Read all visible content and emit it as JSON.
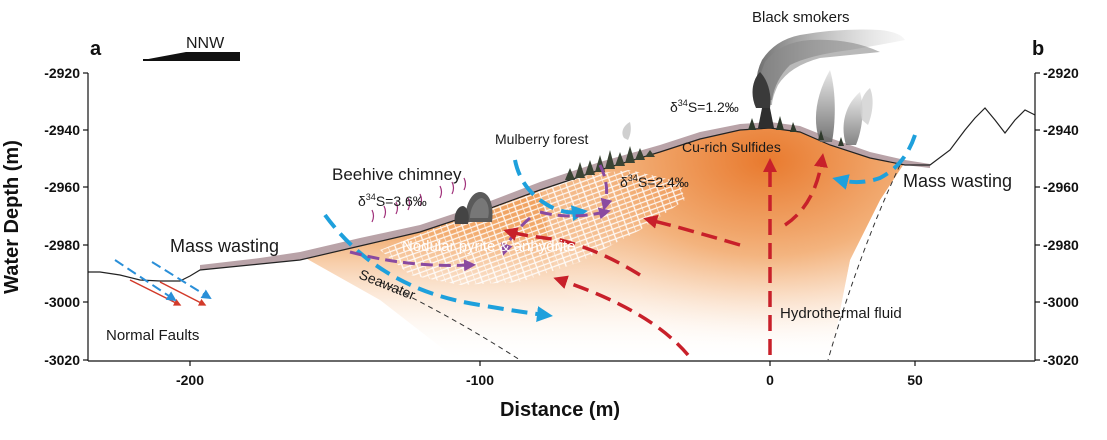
{
  "panel_labels": {
    "left": "a",
    "right": "b"
  },
  "direction": "NNW",
  "axes": {
    "x_title": "Distance (m)",
    "y_title": "Water Depth (m)",
    "x_ticks": [
      "-200",
      "-100",
      "0",
      "50"
    ],
    "y_ticks": [
      "-2920",
      "-2940",
      "-2960",
      "-2980",
      "-3000",
      "-3020"
    ]
  },
  "labels": {
    "black_smokers": "Black smokers",
    "mulberry_forest": "Mulberry forest",
    "beehive_chimney": "Beehive chimney",
    "cu_sulfides": "Cu-rich Sulfides",
    "mass_wasting_left": "Mass wasting",
    "mass_wasting_right": "Mass wasting",
    "nodular": "Nodular pyrite & anhydrite",
    "seawater": "Seawater",
    "normal_faults": "Normal Faults",
    "hydrothermal_fluid": "Hydrothermal fluid"
  },
  "isotopes": {
    "smoker": {
      "prefix": "δ",
      "sup": "34",
      "suffix": "S=1.2‰"
    },
    "forest": {
      "prefix": "δ",
      "sup": "34",
      "suffix": "S=2.4‰"
    },
    "beehive": {
      "prefix": "δ",
      "sup": "34",
      "suffix": "S=3.6‰"
    }
  },
  "colors": {
    "mound_orange": "#ef9a4a",
    "seawater_arrow": "#1ea0dc",
    "fluid_arrow": "#c8202a",
    "purple_arrow": "#8a4aa0",
    "crust": "#b9a3a8"
  }
}
